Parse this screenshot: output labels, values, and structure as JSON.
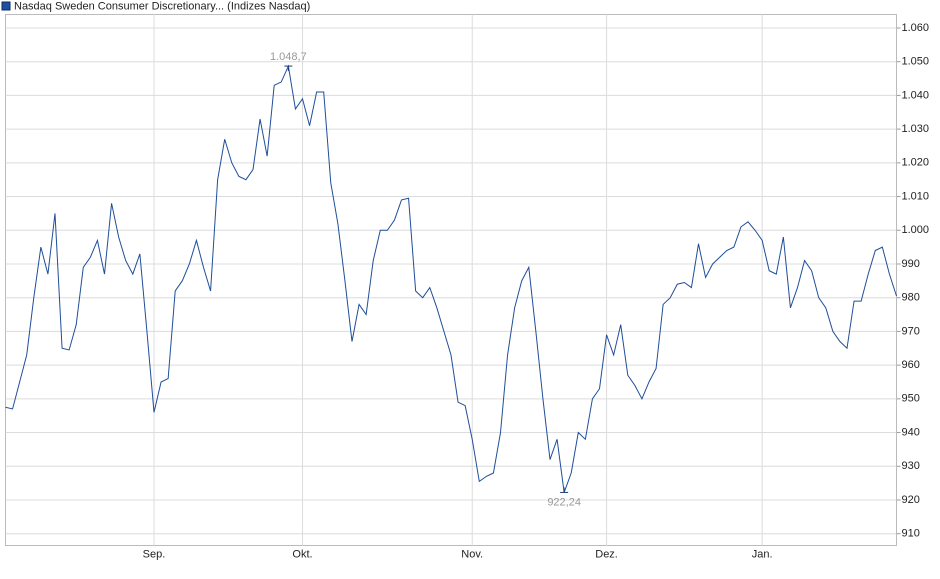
{
  "chart_data": {
    "type": "line",
    "series": [
      {
        "name": "Nasdaq Sweden Consumer Discretionary... (Indizes Nasdaq)",
        "color": "#1f4e9a",
        "values": [
          947.5,
          947,
          955,
          963,
          980,
          995,
          987,
          1005,
          965,
          964.5,
          972,
          989,
          992,
          997,
          987,
          1008,
          998,
          991,
          987,
          993,
          970,
          946,
          955,
          956,
          982,
          985,
          990,
          997,
          989,
          982,
          1015,
          1027,
          1020,
          1016,
          1015,
          1018,
          1033,
          1022,
          1043,
          1044,
          1048.7,
          1036,
          1039,
          1031,
          1041,
          1041,
          1014,
          1002,
          985,
          967,
          978,
          975,
          991,
          1000,
          1000,
          1003,
          1009,
          1009.5,
          982,
          980,
          983,
          977,
          970,
          963,
          949,
          948,
          938,
          925.5,
          927,
          928,
          940,
          963,
          977,
          985,
          989,
          970,
          950,
          932,
          938,
          922.24,
          928,
          940,
          938,
          950,
          953,
          969,
          963,
          972,
          957,
          954,
          950,
          955,
          959,
          978,
          980,
          984,
          984.5,
          983,
          996,
          986,
          990,
          992,
          994,
          995,
          1001,
          1002.5,
          1000,
          997,
          988,
          987,
          998,
          977,
          983,
          991,
          988,
          980,
          977,
          970,
          967,
          965,
          979,
          979,
          987,
          994,
          995,
          987,
          980.5
        ]
      }
    ],
    "categories": [
      null,
      null,
      null,
      null,
      null,
      null,
      null,
      null,
      null,
      null,
      null,
      null,
      null,
      null,
      null,
      null,
      null,
      null,
      null,
      null,
      null,
      "Sep.",
      null,
      null,
      null,
      null,
      null,
      null,
      null,
      null,
      null,
      null,
      null,
      null,
      null,
      null,
      null,
      null,
      null,
      null,
      null,
      null,
      "Okt.",
      null,
      null,
      null,
      null,
      null,
      null,
      null,
      null,
      null,
      null,
      null,
      null,
      null,
      null,
      null,
      null,
      null,
      null,
      null,
      null,
      null,
      null,
      null,
      "Nov.",
      null,
      null,
      null,
      null,
      null,
      null,
      null,
      null,
      null,
      null,
      null,
      null,
      null,
      null,
      null,
      null,
      null,
      null,
      "Dez.",
      null,
      null,
      null,
      null,
      null,
      null,
      null,
      null,
      null,
      null,
      null,
      null,
      null,
      null,
      null,
      null,
      null,
      null,
      null,
      null,
      null,
      "Jan.",
      null,
      null,
      null,
      null,
      null,
      null,
      null,
      null,
      null,
      null,
      null,
      null,
      null,
      null,
      null,
      null,
      null,
      null,
      null
    ],
    "ylim": [
      906.5,
      1064
    ],
    "yticks": [
      910,
      920,
      930,
      940,
      950,
      960,
      970,
      980,
      990,
      {
        "value": 1000,
        "label": "1.000"
      },
      {
        "value": 1010,
        "label": "1.010"
      },
      {
        "value": 1020,
        "label": "1.020"
      },
      {
        "value": 1030,
        "label": "1.030"
      },
      {
        "value": 1040,
        "label": "1.040"
      },
      {
        "value": 1050,
        "label": "1.050"
      },
      {
        "value": 1060,
        "label": "1.060"
      }
    ],
    "grid": true,
    "annotations": [
      {
        "value": 1048.7,
        "label": "1.048,7"
      },
      {
        "value": 922.24,
        "label": "922,24"
      }
    ]
  }
}
